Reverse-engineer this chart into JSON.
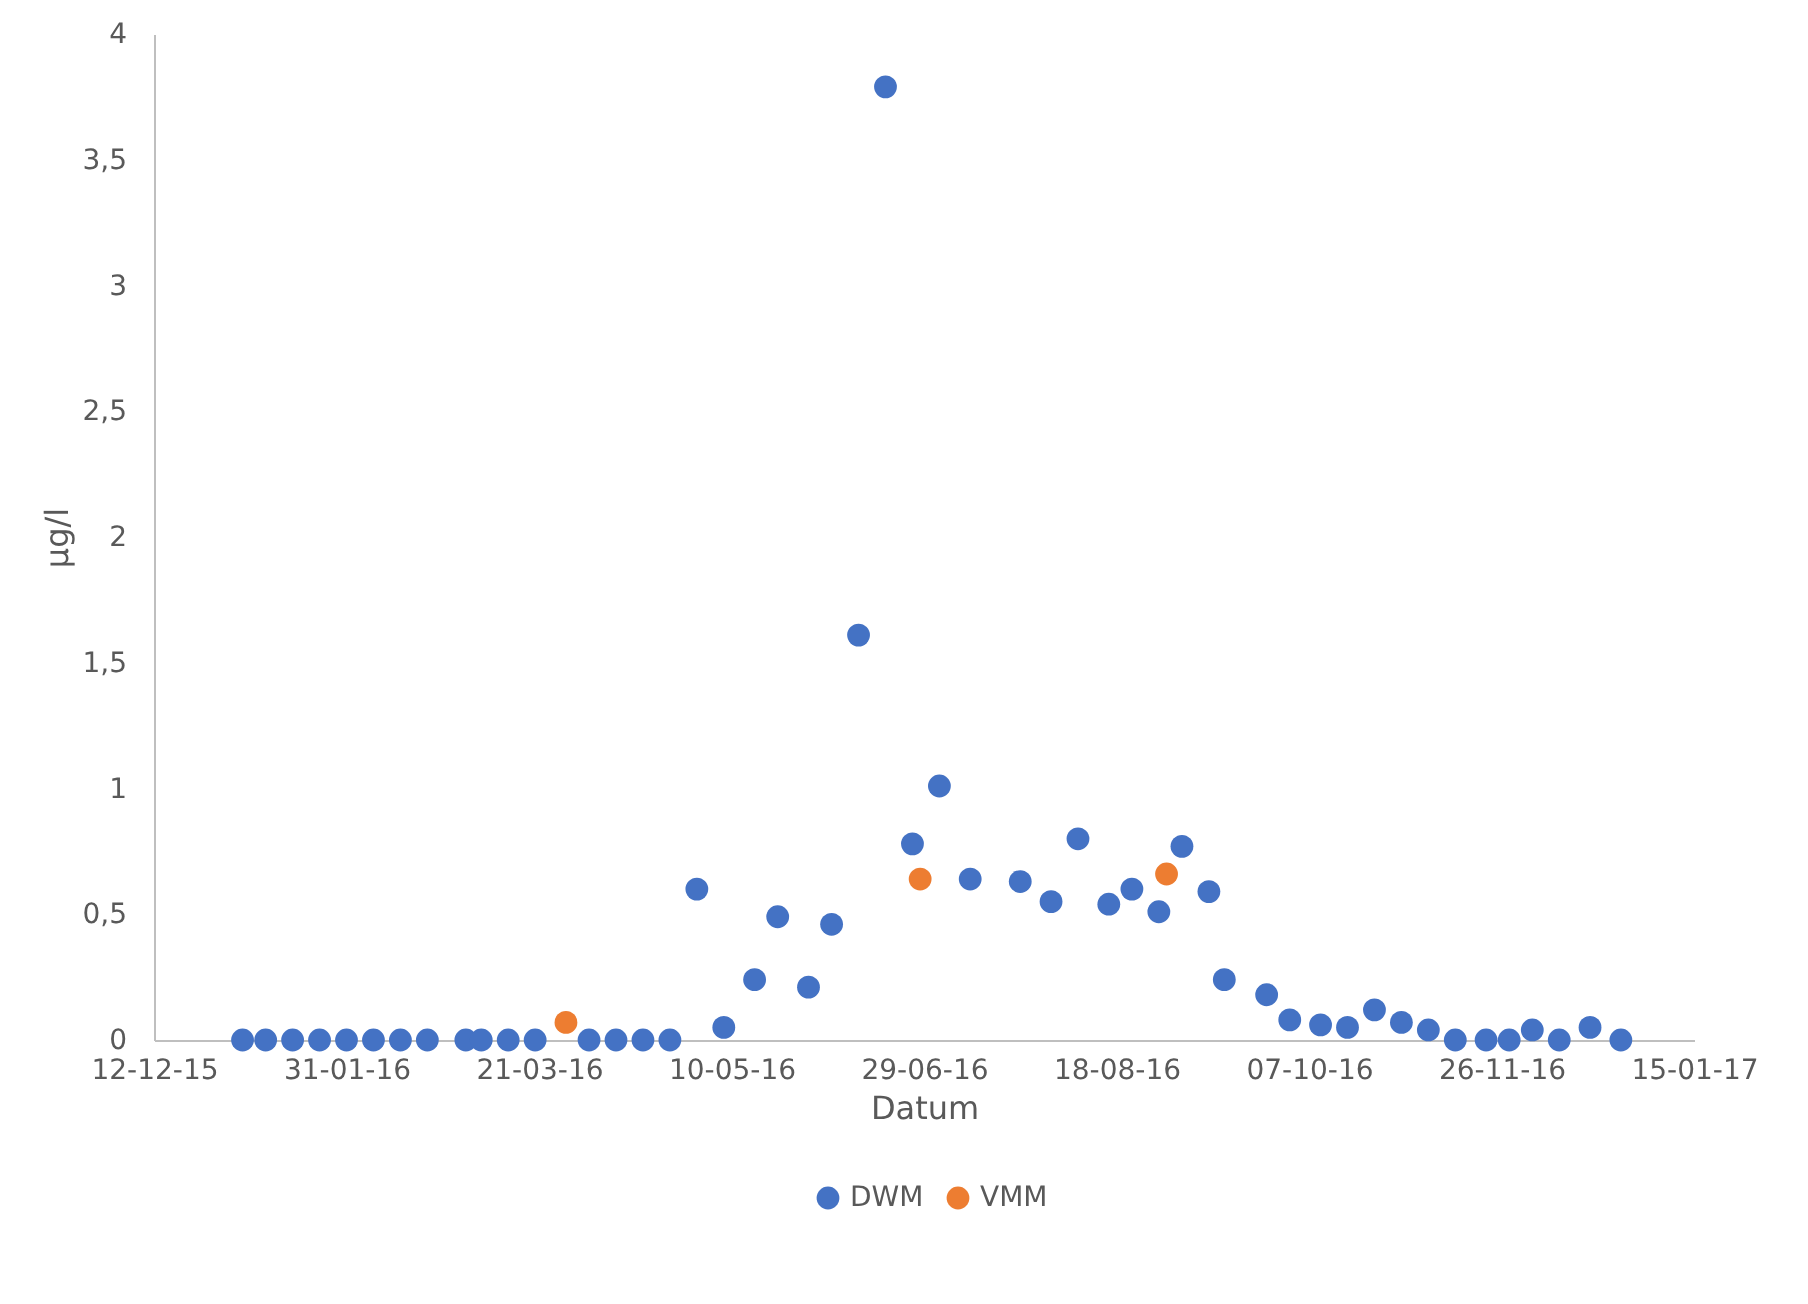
{
  "chart_data": {
    "type": "scatter",
    "xlabel": "Datum",
    "ylabel": "µg/l",
    "xlim": [
      "2015-12-12",
      "2017-01-15"
    ],
    "xticks": [
      {
        "value": "2015-12-12",
        "label": "12-12-15"
      },
      {
        "value": "2016-01-31",
        "label": "31-01-16"
      },
      {
        "value": "2016-03-21",
        "label": "21-03-16"
      },
      {
        "value": "2016-05-10",
        "label": "10-05-16"
      },
      {
        "value": "2016-06-29",
        "label": "29-06-16"
      },
      {
        "value": "2016-08-18",
        "label": "18-08-16"
      },
      {
        "value": "2016-10-07",
        "label": "07-10-16"
      },
      {
        "value": "2016-11-26",
        "label": "26-11-16"
      },
      {
        "value": "2017-01-15",
        "label": "15-01-17"
      }
    ],
    "ylim": [
      0,
      4
    ],
    "yticks": [
      0,
      {
        "value": 0.5,
        "label": "0,5"
      },
      1,
      {
        "value": 1.5,
        "label": "1,5"
      },
      2,
      {
        "value": 2.5,
        "label": "2,5"
      },
      3,
      {
        "value": 3.5,
        "label": "3,5"
      },
      4
    ],
    "grid": false,
    "legend": "bottom",
    "marker": "circle",
    "series": [
      {
        "name": "DWM",
        "color": "#4472c4",
        "x": [
          "2016-01-04",
          "2016-01-10",
          "2016-01-17",
          "2016-01-24",
          "2016-01-31",
          "2016-02-07",
          "2016-02-14",
          "2016-02-21",
          "2016-03-02",
          "2016-03-06",
          "2016-03-13",
          "2016-03-20",
          "2016-04-03",
          "2016-04-10",
          "2016-04-17",
          "2016-04-24",
          "2016-05-01",
          "2016-05-08",
          "2016-05-16",
          "2016-05-22",
          "2016-05-30",
          "2016-06-05",
          "2016-06-12",
          "2016-06-19",
          "2016-06-26",
          "2016-07-03",
          "2016-07-11",
          "2016-07-24",
          "2016-08-01",
          "2016-08-08",
          "2016-08-16",
          "2016-08-22",
          "2016-08-29",
          "2016-09-04",
          "2016-09-11",
          "2016-09-15",
          "2016-09-26",
          "2016-10-02",
          "2016-10-10",
          "2016-10-17",
          "2016-10-24",
          "2016-10-31",
          "2016-11-07",
          "2016-11-14",
          "2016-11-22",
          "2016-11-28",
          "2016-12-04",
          "2016-12-11",
          "2016-12-19",
          "2016-12-27"
        ],
        "values": [
          0,
          0,
          0,
          0,
          0,
          0,
          0,
          0,
          0,
          0,
          0,
          0,
          0,
          0,
          0,
          0,
          0.6,
          0.05,
          0.24,
          0.49,
          0.21,
          0.46,
          1.61,
          3.79,
          0.78,
          1.01,
          0.64,
          0.63,
          0.55,
          0.8,
          0.54,
          0.6,
          0.51,
          0.77,
          0.59,
          0.24,
          0.18,
          0.08,
          0.06,
          0.05,
          0.12,
          0.07,
          0.04,
          0,
          0,
          0,
          0.04,
          0,
          0.05,
          0
        ]
      },
      {
        "name": "VMM",
        "color": "#ed7d31",
        "x": [
          "2016-03-28",
          "2016-06-28",
          "2016-08-31"
        ],
        "values": [
          0.07,
          0.64,
          0.66
        ]
      }
    ]
  }
}
